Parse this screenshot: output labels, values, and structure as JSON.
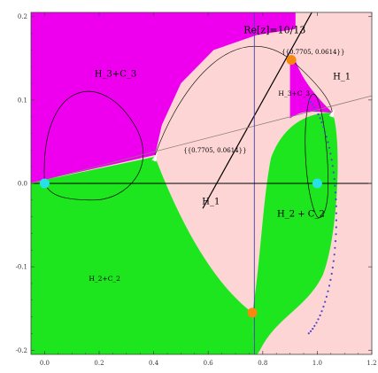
{
  "chart_data": {
    "type": "scatter",
    "xlim": [
      -0.05,
      1.2
    ],
    "ylim": [
      -0.205,
      0.205
    ],
    "x_ticks": [
      0.0,
      0.2,
      0.4,
      0.6,
      0.8,
      1.0,
      1.2
    ],
    "x_tick_labels": [
      "0.0",
      "0.2",
      "0.4",
      "0.6",
      "0.8",
      "1.0",
      "1.2"
    ],
    "y_ticks": [
      -0.2,
      -0.1,
      0.0,
      0.1,
      0.2
    ],
    "y_tick_labels": [
      "-0.2",
      "-0.1",
      "0.0",
      "0.1",
      "0.2"
    ],
    "grid": false,
    "colors": {
      "H1": "#fdd5d5",
      "H2C2": "#1ee61e",
      "H3C3": "#ee00ee",
      "marker_orange": "#f6870f",
      "marker_cyan": "#27e1e8",
      "dots": "#4a4ac8",
      "vline": "#4444aa"
    },
    "region_labels": {
      "h3c3_main": "H_3+C_3",
      "h3c3_small": "H_3+C_3",
      "h1_right": "H_1",
      "h1_center": "H_1",
      "h2c2_right": "H_2 + C_2",
      "h2c2_left": "H_2+C_2"
    },
    "vertical_line": {
      "x": 0.7692,
      "label": "Re[z]=10/13"
    },
    "annotation_upper": "{{0.7705, 0.0614}}",
    "annotation_lower": "{{0.7705, 0.0614}}",
    "points": {
      "orange": [
        {
          "x": 0.905,
          "y": 0.148
        },
        {
          "x": 0.762,
          "y": -0.155
        }
      ],
      "cyan": [
        {
          "x": 0.0,
          "y": 0.0
        },
        {
          "x": 1.0,
          "y": 0.0
        }
      ],
      "white": [
        {
          "x": 0.405,
          "y": 0.032
        },
        {
          "x": 1.055,
          "y": 0.085
        }
      ]
    },
    "lines": [
      {
        "name": "steep",
        "x1": 0.58,
        "y1": -0.03,
        "x2": 0.98,
        "y2": 0.205
      },
      {
        "name": "shallow",
        "x1": -0.05,
        "y1": 0.0,
        "x2": 1.2,
        "y2": 0.105
      }
    ]
  }
}
